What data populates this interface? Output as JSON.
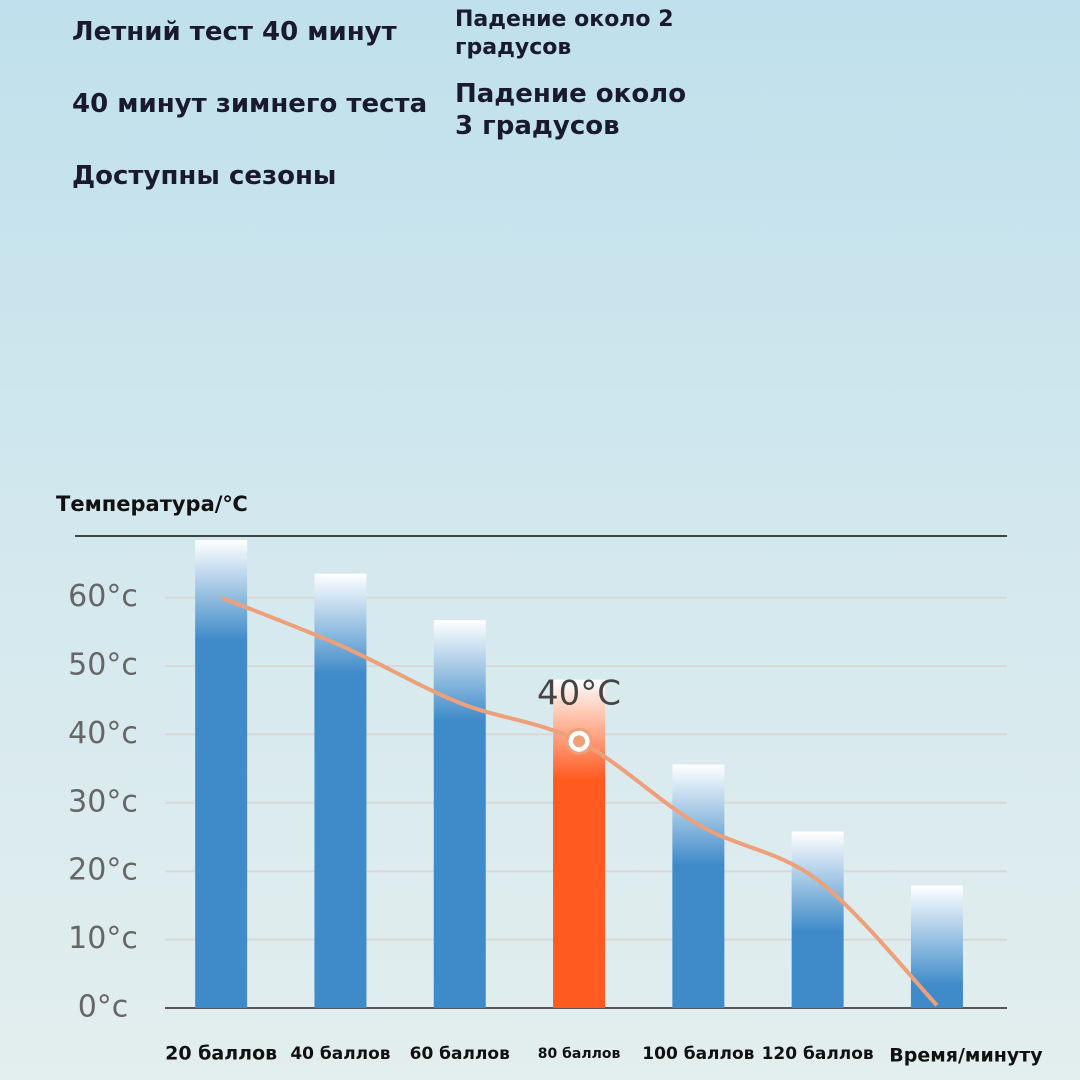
{
  "header": {
    "rows": [
      [
        "Летний тест 40 минут",
        "Падение около 2 градусов"
      ],
      [
        "40 минут зимнего теста",
        "Падение около 3 градусов"
      ],
      [
        "Доступны сезоны"
      ]
    ]
  },
  "chart_data": {
    "type": "bar",
    "ylabel": "Температура/℃",
    "xlabel": "Время/минуту",
    "categories": [
      "20 баллов",
      "40 баллов",
      "60 баллов",
      "80 баллов",
      "100 баллов",
      "120 баллов",
      null
    ],
    "values": [
      68.4,
      63.5,
      56.7,
      48,
      35.6,
      25.8,
      17.9
    ],
    "colors": [
      "#3f8bc9",
      "#3f8bc9",
      "#3f8bc9",
      "#ff5a1f",
      "#3f8bc9",
      "#3f8bc9",
      "#3f8bc9"
    ],
    "line": {
      "color": "#eda07a",
      "values": [
        60,
        53,
        44.6,
        39,
        26.8,
        18.7,
        0.4
      ]
    },
    "annotation": {
      "text": "40°C",
      "index": 3
    },
    "ylim": [
      0,
      69
    ],
    "yticks": [
      {
        "value": 0,
        "label": "0°c"
      },
      {
        "value": 10,
        "label": "10°c"
      },
      {
        "value": 20,
        "label": "20°c"
      },
      {
        "value": 30,
        "label": "30°c"
      },
      {
        "value": 40,
        "label": "40°c"
      },
      {
        "value": 50,
        "label": "50°c"
      },
      {
        "value": 60,
        "label": "60°c"
      }
    ],
    "grid": true
  }
}
